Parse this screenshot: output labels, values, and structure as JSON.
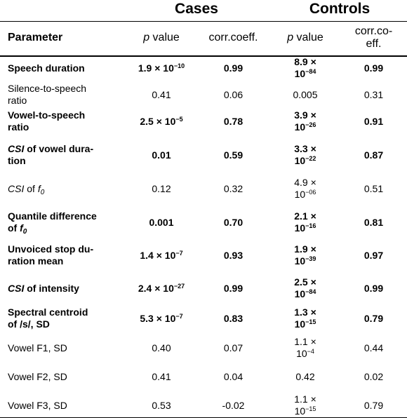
{
  "groups": {
    "cases": "Cases",
    "controls": "Controls"
  },
  "headers": {
    "parameter": "Parameter",
    "p_value_italic": "p",
    "p_value_rest": " value",
    "cases_corr": "corr.coeff.",
    "controls_p_italic": "p",
    "controls_p_rest": " value",
    "controls_corr_line1": "corr.co-",
    "controls_corr_line2": "eff."
  },
  "rows": [
    {
      "param": "Speech duration",
      "cases_p": "1.9 × 10<sup>−10</sup>",
      "cases_corr": "0.99",
      "controls_p": "8.9 ×<br>10<sup>−84</sup>",
      "controls_corr": "0.99",
      "bold": true
    },
    {
      "param": "Silence-to-speech<br>ratio",
      "cases_p": "0.41",
      "cases_corr": "0.06",
      "controls_p": "0.005",
      "controls_corr": "0.31",
      "bold": false
    },
    {
      "param": "Vowel-to-speech<br>ratio",
      "cases_p": "2.5 × 10<sup>−5</sup>",
      "cases_corr": "0.78",
      "controls_p": "3.9 ×<br>10<sup>−26</sup>",
      "controls_corr": "0.91",
      "bold": true
    },
    {
      "param": "<i>CSI</i> of vowel dura-<br>tion",
      "cases_p": "0.01",
      "cases_corr": "0.59",
      "controls_p": "3.3 ×<br>10<sup>−22</sup>",
      "controls_corr": "0.87",
      "bold": true
    },
    {
      "param": "<i>CSI</i> of <i>f<sub>0</sub></i>",
      "cases_p": "0.12",
      "cases_corr": "0.32",
      "controls_p": "4.9 ×<br>10<sup>−06</sup>",
      "controls_corr": "0.51",
      "bold": false
    },
    {
      "param": "Quantile difference<br>of <i>f<sub>0</sub></i>",
      "cases_p": "0.001",
      "cases_corr": "0.70",
      "controls_p": "2.1 ×<br>10<sup>−16</sup>",
      "controls_corr": "0.81",
      "bold": true
    },
    {
      "param": "Unvoiced stop du-<br>ration mean",
      "cases_p": "1.4 × 10<sup>−7</sup>",
      "cases_corr": "0.93",
      "controls_p": "1.9 ×<br>10<sup>−39</sup>",
      "controls_corr": "0.97",
      "bold": true
    },
    {
      "param": "<i>CSI</i> of intensity",
      "cases_p": "2.4 × 10<sup>−27</sup>",
      "cases_corr": "0.99",
      "controls_p": "2.5 ×<br>10<sup>−84</sup>",
      "controls_corr": "0.99",
      "bold": true
    },
    {
      "param": "Spectral centroid<br>of /s/, SD",
      "cases_p": "5.3 × 10<sup>−7</sup>",
      "cases_corr": "0.83",
      "controls_p": "1.3 ×<br>10<sup>−15</sup>",
      "controls_corr": "0.79",
      "bold": true
    },
    {
      "param": "Vowel F1, SD",
      "cases_p": "0.40",
      "cases_corr": "0.07",
      "controls_p": "1.1 ×<br>10<sup>−4</sup>",
      "controls_corr": "0.44",
      "bold": false
    },
    {
      "param": "Vowel F2, SD",
      "cases_p": "0.41",
      "cases_corr": "0.04",
      "controls_p": "0.42",
      "controls_corr": "0.02",
      "bold": false
    },
    {
      "param": "Vowel F3, SD",
      "cases_p": "0.53",
      "cases_corr": "-0.02",
      "controls_p": "1.1 ×<br>10<sup>−15</sup>",
      "controls_corr": "0.79",
      "bold": false
    }
  ]
}
